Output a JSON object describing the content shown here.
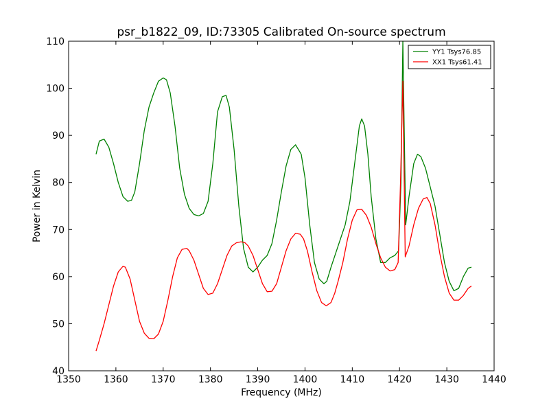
{
  "chart_data": {
    "type": "line",
    "title": "psr_b1822_09, ID:73305 Calibrated On-source spectrum",
    "xlabel": "Frequency (MHz)",
    "ylabel": "Power in Kelvin",
    "xlim": [
      1350,
      1440
    ],
    "ylim": [
      40,
      110
    ],
    "xticks": [
      1350,
      1360,
      1370,
      1380,
      1390,
      1400,
      1410,
      1420,
      1430,
      1440
    ],
    "yticks": [
      40,
      50,
      60,
      70,
      80,
      90,
      100,
      110
    ],
    "grid": false,
    "legend_position": "top-right",
    "series": [
      {
        "name": "YY1 Tsys76.85",
        "color": "#008000",
        "x": [
          1355.8,
          1356.5,
          1357.5,
          1358.5,
          1359.5,
          1360.5,
          1361.5,
          1362.5,
          1363.3,
          1364.0,
          1365.0,
          1366.0,
          1367.0,
          1368.0,
          1369.0,
          1370.0,
          1370.7,
          1371.5,
          1372.5,
          1373.5,
          1374.5,
          1375.5,
          1376.5,
          1377.5,
          1378.5,
          1379.5,
          1380.5,
          1381.5,
          1382.5,
          1383.3,
          1384.0,
          1385.0,
          1386.0,
          1387.0,
          1388.0,
          1389.0,
          1390.0,
          1391.0,
          1392.0,
          1393.0,
          1394.0,
          1395.0,
          1396.0,
          1397.0,
          1398.0,
          1399.2,
          1400.0,
          1401.0,
          1402.0,
          1403.0,
          1404.0,
          1404.6,
          1405.5,
          1406.5,
          1407.5,
          1408.5,
          1409.5,
          1410.5,
          1411.5,
          1412.0,
          1412.6,
          1413.3,
          1414.0,
          1415.0,
          1416.0,
          1417.0,
          1418.0,
          1419.0,
          1419.8,
          1420.3,
          1420.7,
          1421.3,
          1422.0,
          1423.0,
          1423.8,
          1424.5,
          1425.5,
          1426.5,
          1427.5,
          1428.5,
          1429.5,
          1430.5,
          1431.5,
          1432.5,
          1433.5,
          1434.5,
          1435.2
        ],
        "values": [
          86.0,
          88.8,
          89.2,
          87.5,
          84.0,
          80.0,
          77.0,
          76.0,
          76.2,
          78.0,
          84.0,
          91.0,
          96.0,
          99.0,
          101.5,
          102.2,
          101.8,
          99.0,
          92.0,
          83.0,
          77.5,
          74.5,
          73.2,
          72.9,
          73.4,
          76.0,
          84.0,
          95.0,
          98.2,
          98.5,
          96.0,
          87.0,
          75.0,
          66.0,
          62.0,
          61.0,
          62.0,
          63.5,
          64.5,
          67.0,
          72.0,
          78.0,
          83.5,
          87.0,
          88.0,
          86.0,
          81.0,
          71.0,
          63.0,
          59.5,
          58.5,
          59.0,
          62.0,
          65.0,
          68.0,
          71.0,
          76.0,
          84.0,
          92.0,
          93.5,
          92.0,
          86.0,
          77.0,
          68.0,
          63.0,
          63.0,
          64.0,
          64.5,
          65.5,
          80.0,
          110.0,
          71.0,
          77.0,
          84.0,
          86.0,
          85.5,
          83.0,
          79.0,
          75.0,
          69.0,
          63.0,
          59.0,
          57.0,
          57.5,
          60.0,
          61.8,
          62.0
        ]
      },
      {
        "name": "XX1 Tsys61.41",
        "color": "#ff0000",
        "x": [
          1355.8,
          1356.5,
          1357.5,
          1358.5,
          1359.5,
          1360.5,
          1361.5,
          1362.0,
          1363.0,
          1364.0,
          1365.0,
          1366.0,
          1367.0,
          1368.0,
          1369.0,
          1370.0,
          1371.0,
          1372.0,
          1373.0,
          1374.0,
          1375.0,
          1375.5,
          1376.5,
          1377.5,
          1378.5,
          1379.5,
          1380.5,
          1381.5,
          1382.5,
          1383.5,
          1384.5,
          1385.5,
          1386.5,
          1387.3,
          1388.0,
          1389.0,
          1390.0,
          1391.0,
          1392.0,
          1393.0,
          1394.0,
          1395.0,
          1396.0,
          1397.0,
          1398.0,
          1399.0,
          1399.7,
          1400.5,
          1401.5,
          1402.5,
          1403.5,
          1404.5,
          1405.5,
          1406.3,
          1407.0,
          1408.0,
          1409.0,
          1410.0,
          1411.0,
          1412.0,
          1413.0,
          1414.0,
          1415.0,
          1416.0,
          1417.0,
          1418.0,
          1419.0,
          1419.7,
          1420.2,
          1420.7,
          1421.2,
          1422.0,
          1423.0,
          1424.0,
          1425.0,
          1425.8,
          1426.5,
          1427.5,
          1428.5,
          1429.5,
          1430.5,
          1431.5,
          1432.5,
          1433.5,
          1434.5,
          1435.2
        ],
        "values": [
          44.2,
          46.5,
          50.0,
          54.0,
          58.0,
          61.0,
          62.2,
          62.0,
          59.5,
          55.0,
          50.5,
          48.0,
          46.9,
          46.8,
          47.8,
          50.5,
          55.0,
          60.0,
          64.0,
          65.8,
          66.0,
          65.5,
          63.5,
          60.5,
          57.5,
          56.2,
          56.5,
          58.5,
          61.5,
          64.5,
          66.5,
          67.2,
          67.4,
          67.2,
          66.5,
          64.5,
          61.5,
          58.5,
          56.8,
          56.9,
          58.5,
          62.0,
          65.5,
          68.0,
          69.2,
          69.0,
          68.0,
          65.5,
          61.0,
          57.0,
          54.5,
          53.8,
          54.5,
          56.5,
          59.0,
          63.0,
          68.0,
          72.0,
          74.2,
          74.3,
          73.0,
          70.5,
          67.0,
          64.0,
          62.0,
          61.2,
          61.5,
          63.0,
          80.0,
          101.5,
          64.2,
          66.5,
          71.0,
          74.5,
          76.5,
          76.8,
          75.5,
          71.0,
          65.0,
          60.0,
          56.5,
          55.0,
          55.0,
          56.0,
          57.5,
          58.0
        ]
      }
    ]
  }
}
